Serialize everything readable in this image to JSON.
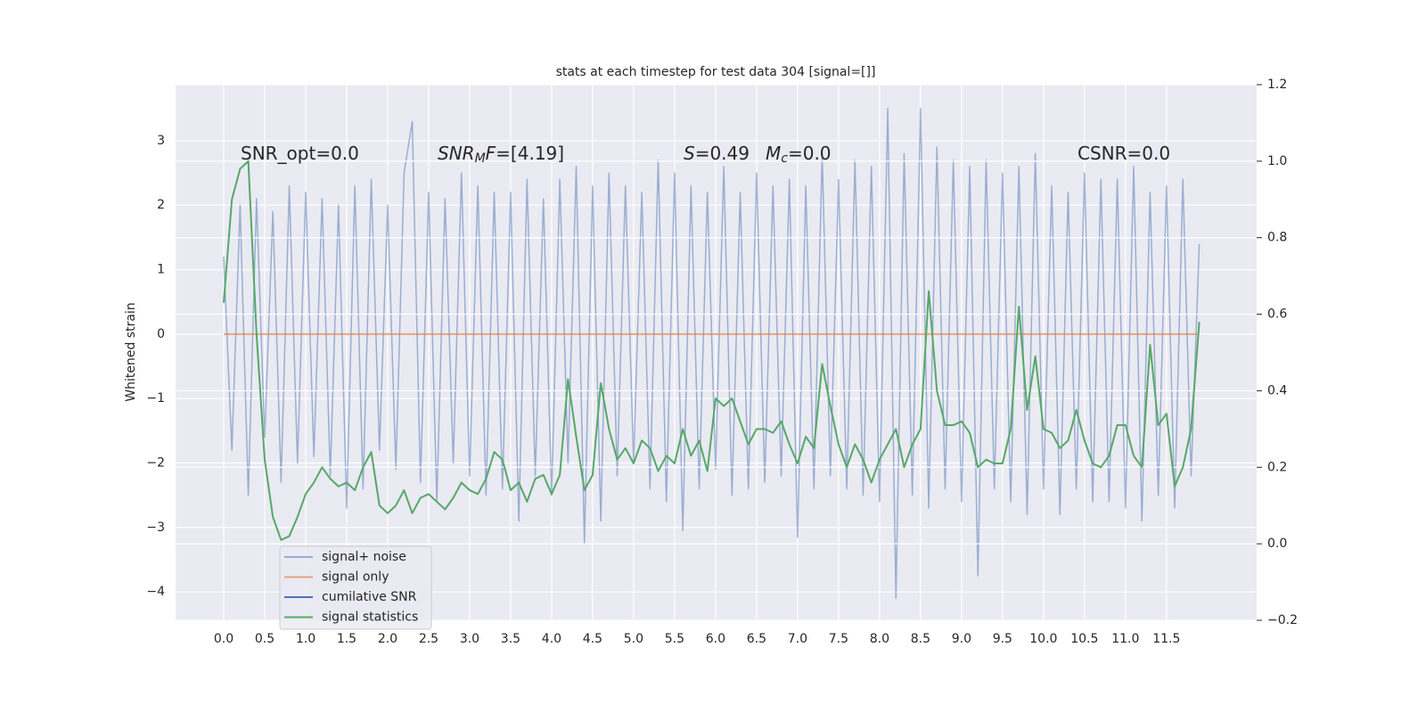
{
  "chart_data": {
    "type": "line",
    "title": "stats at each timestep for test data 304 [signal=[]]",
    "ylabel": "Whitened strain",
    "grid": true,
    "legend": "lower left",
    "x": [
      0.0,
      0.1,
      0.2,
      0.3,
      0.4,
      0.5,
      0.6,
      0.7,
      0.8,
      0.9,
      1.0,
      1.1,
      1.2,
      1.3,
      1.4,
      1.5,
      1.6,
      1.7,
      1.8,
      1.9,
      2.0,
      2.1,
      2.2,
      2.3,
      2.4,
      2.5,
      2.6,
      2.7,
      2.8,
      2.9,
      3.0,
      3.1,
      3.2,
      3.3,
      3.4,
      3.5,
      3.6,
      3.7,
      3.8,
      3.9,
      4.0,
      4.1,
      4.2,
      4.3,
      4.4,
      4.5,
      4.6,
      4.7,
      4.8,
      4.9,
      5.0,
      5.1,
      5.2,
      5.3,
      5.4,
      5.5,
      5.6,
      5.7,
      5.8,
      5.9,
      6.0,
      6.1,
      6.2,
      6.3,
      6.4,
      6.5,
      6.6,
      6.7,
      6.8,
      6.9,
      7.0,
      7.1,
      7.2,
      7.3,
      7.4,
      7.5,
      7.6,
      7.7,
      7.8,
      7.9,
      8.0,
      8.1,
      8.2,
      8.3,
      8.4,
      8.5,
      8.6,
      8.7,
      8.8,
      8.9,
      9.0,
      9.1,
      9.2,
      9.3,
      9.4,
      9.5,
      9.6,
      9.7,
      9.8,
      9.9,
      10.0,
      10.1,
      10.2,
      10.3,
      10.4,
      10.5,
      10.6,
      10.7,
      10.8,
      10.9,
      11.0,
      11.1,
      11.2,
      11.3,
      11.4,
      11.5,
      11.6,
      11.7,
      11.8,
      11.9
    ],
    "xlim": [
      -0.587,
      12.6
    ],
    "xticks": [
      {
        "value": 0,
        "label": "0.0"
      },
      {
        "value": 0.5,
        "label": "0.5"
      },
      {
        "value": 1,
        "label": "1.0"
      },
      {
        "value": 1.5,
        "label": "1.5"
      },
      {
        "value": 2,
        "label": "2.0"
      },
      {
        "value": 2.5,
        "label": "2.5"
      },
      {
        "value": 3,
        "label": "3.0"
      },
      {
        "value": 3.5,
        "label": "3.5"
      },
      {
        "value": 4,
        "label": "4.0"
      },
      {
        "value": 4.5,
        "label": "4.5"
      },
      {
        "value": 5,
        "label": "5.0"
      },
      {
        "value": 5.5,
        "label": "5.5"
      },
      {
        "value": 6,
        "label": "6.0"
      },
      {
        "value": 6.5,
        "label": "6.5"
      },
      {
        "value": 7,
        "label": "7.0"
      },
      {
        "value": 7.5,
        "label": "7.5"
      },
      {
        "value": 8,
        "label": "8.0"
      },
      {
        "value": 8.5,
        "label": "8.5"
      },
      {
        "value": 9,
        "label": "9.0"
      },
      {
        "value": 9.5,
        "label": "9.5"
      },
      {
        "value": 10,
        "label": "10.0"
      },
      {
        "value": 10.5,
        "label": "10.5"
      },
      {
        "value": 11,
        "label": "11.0"
      },
      {
        "value": 11.5,
        "label": "11.5"
      }
    ],
    "ylim": [
      -4.44,
      3.87
    ],
    "yticks": [
      {
        "value": -4,
        "label": "−4"
      },
      {
        "value": -3,
        "label": "−3"
      },
      {
        "value": -2,
        "label": "−2"
      },
      {
        "value": -1,
        "label": "−1"
      },
      0,
      1,
      2,
      3
    ],
    "y2lim": [
      -0.2,
      1.2
    ],
    "y2ticks": [
      {
        "value": -0.2,
        "label": "−0.2"
      },
      {
        "value": 0,
        "label": "0.0"
      },
      {
        "value": 0.2,
        "label": "0.2"
      },
      {
        "value": 0.4,
        "label": "0.4"
      },
      {
        "value": 0.6,
        "label": "0.6"
      },
      {
        "value": 0.8,
        "label": "0.8"
      },
      {
        "value": 1,
        "label": "1.0"
      },
      {
        "value": 1.2,
        "label": "1.2"
      }
    ],
    "series": [
      {
        "name": "signal+ noise",
        "color": "#4c72b0",
        "values": [
          1.2,
          -1.8,
          2.0,
          -2.5,
          2.1,
          -1.6,
          1.9,
          -2.3,
          2.3,
          -2.0,
          2.2,
          -1.9,
          2.1,
          -2.2,
          2.0,
          -2.7,
          2.3,
          -2.4,
          2.4,
          -1.8,
          2.0,
          -2.1,
          2.5,
          3.3,
          -2.3,
          2.2,
          -2.6,
          2.1,
          -2.0,
          2.5,
          -2.2,
          2.3,
          -2.5,
          2.2,
          -2.4,
          2.2,
          -2.9,
          2.4,
          -2.2,
          2.1,
          -2.5,
          2.4,
          -2.0,
          2.6,
          -3.25,
          2.3,
          -2.9,
          2.5,
          -2.2,
          2.3,
          -2.0,
          2.2,
          -2.4,
          2.7,
          -2.6,
          2.5,
          -3.05,
          2.3,
          -2.4,
          2.2,
          -2.1,
          2.6,
          -2.5,
          2.2,
          -2.4,
          2.5,
          -2.3,
          2.3,
          -2.2,
          2.4,
          -3.15,
          2.3,
          -2.4,
          2.8,
          -2.2,
          2.4,
          -2.4,
          2.7,
          -2.5,
          2.6,
          -2.6,
          3.5,
          -4.1,
          2.8,
          -2.5,
          3.5,
          -2.7,
          2.9,
          -2.4,
          2.7,
          -2.6,
          2.6,
          -3.75,
          2.7,
          -2.4,
          2.5,
          -2.6,
          2.6,
          -2.8,
          2.8,
          -2.4,
          2.3,
          -2.8,
          2.2,
          -2.4,
          2.5,
          -2.6,
          2.4,
          -2.6,
          2.4,
          -2.7,
          2.6,
          -2.9,
          2.2,
          -2.5,
          2.3,
          -2.7,
          2.4,
          -2.2,
          1.4
        ]
      },
      {
        "name": "signal only",
        "color": "#dd8452",
        "values": [
          0,
          0,
          0,
          0,
          0,
          0,
          0,
          0,
          0,
          0,
          0,
          0,
          0,
          0,
          0,
          0,
          0,
          0,
          0,
          0,
          0,
          0,
          0,
          0,
          0,
          0,
          0,
          0,
          0,
          0,
          0,
          0,
          0,
          0,
          0,
          0,
          0,
          0,
          0,
          0,
          0,
          0,
          0,
          0,
          0,
          0,
          0,
          0,
          0,
          0,
          0,
          0,
          0,
          0,
          0,
          0,
          0,
          0,
          0,
          0,
          0,
          0,
          0,
          0,
          0,
          0,
          0,
          0,
          0,
          0,
          0,
          0,
          0,
          0,
          0,
          0,
          0,
          0,
          0,
          0,
          0,
          0,
          0,
          0,
          0,
          0,
          0,
          0,
          0,
          0,
          0,
          0,
          0,
          0,
          0,
          0,
          0,
          0,
          0,
          0,
          0,
          0,
          0,
          0,
          0,
          0,
          0,
          0,
          0,
          0,
          0,
          0,
          0,
          0,
          0,
          0,
          0,
          0,
          0,
          0
        ]
      },
      {
        "name": "cumilative SNR",
        "color": "#4c72b0"
      },
      {
        "name": "signal statistics",
        "color": "#55a868",
        "axis": "y2",
        "values": [
          0.63,
          0.9,
          0.98,
          1.0,
          0.55,
          0.22,
          0.07,
          0.01,
          0.02,
          0.07,
          0.13,
          0.16,
          0.2,
          0.17,
          0.15,
          0.16,
          0.14,
          0.2,
          0.24,
          0.1,
          0.08,
          0.1,
          0.14,
          0.08,
          0.12,
          0.13,
          0.11,
          0.09,
          0.12,
          0.16,
          0.14,
          0.13,
          0.17,
          0.24,
          0.22,
          0.14,
          0.16,
          0.11,
          0.17,
          0.18,
          0.13,
          0.18,
          0.43,
          0.28,
          0.14,
          0.18,
          0.42,
          0.3,
          0.22,
          0.25,
          0.21,
          0.27,
          0.25,
          0.19,
          0.23,
          0.21,
          0.3,
          0.23,
          0.27,
          0.19,
          0.38,
          0.36,
          0.38,
          0.32,
          0.26,
          0.3,
          0.3,
          0.29,
          0.32,
          0.26,
          0.21,
          0.28,
          0.25,
          0.47,
          0.36,
          0.26,
          0.2,
          0.26,
          0.22,
          0.16,
          0.22,
          0.26,
          0.3,
          0.2,
          0.26,
          0.3,
          0.66,
          0.4,
          0.31,
          0.31,
          0.32,
          0.29,
          0.2,
          0.22,
          0.21,
          0.21,
          0.3,
          0.62,
          0.35,
          0.49,
          0.3,
          0.29,
          0.25,
          0.27,
          0.35,
          0.27,
          0.21,
          0.2,
          0.23,
          0.31,
          0.31,
          0.23,
          0.2,
          0.52,
          0.31,
          0.34,
          0.15,
          0.2,
          0.3,
          0.58
        ]
      }
    ],
    "annotations": [
      {
        "parts": [
          {
            "text": "SNR_opt=0.0"
          }
        ]
      },
      {
        "parts": [
          {
            "text": "SNR",
            "italic": true
          },
          {
            "text": "M",
            "italic": true,
            "sub": true
          },
          {
            "text": "F",
            "italic": true
          },
          {
            "text": "=[4.19]"
          }
        ]
      },
      {
        "parts": [
          {
            "text": "S",
            "italic": true
          },
          {
            "text": "=0.49"
          }
        ]
      },
      {
        "parts": [
          {
            "text": "M",
            "italic": true
          },
          {
            "text": "c",
            "italic": true,
            "sub": true
          },
          {
            "text": "=0.0"
          }
        ]
      },
      {
        "parts": [
          {
            "text": "CSNR=0.0"
          }
        ]
      }
    ]
  }
}
